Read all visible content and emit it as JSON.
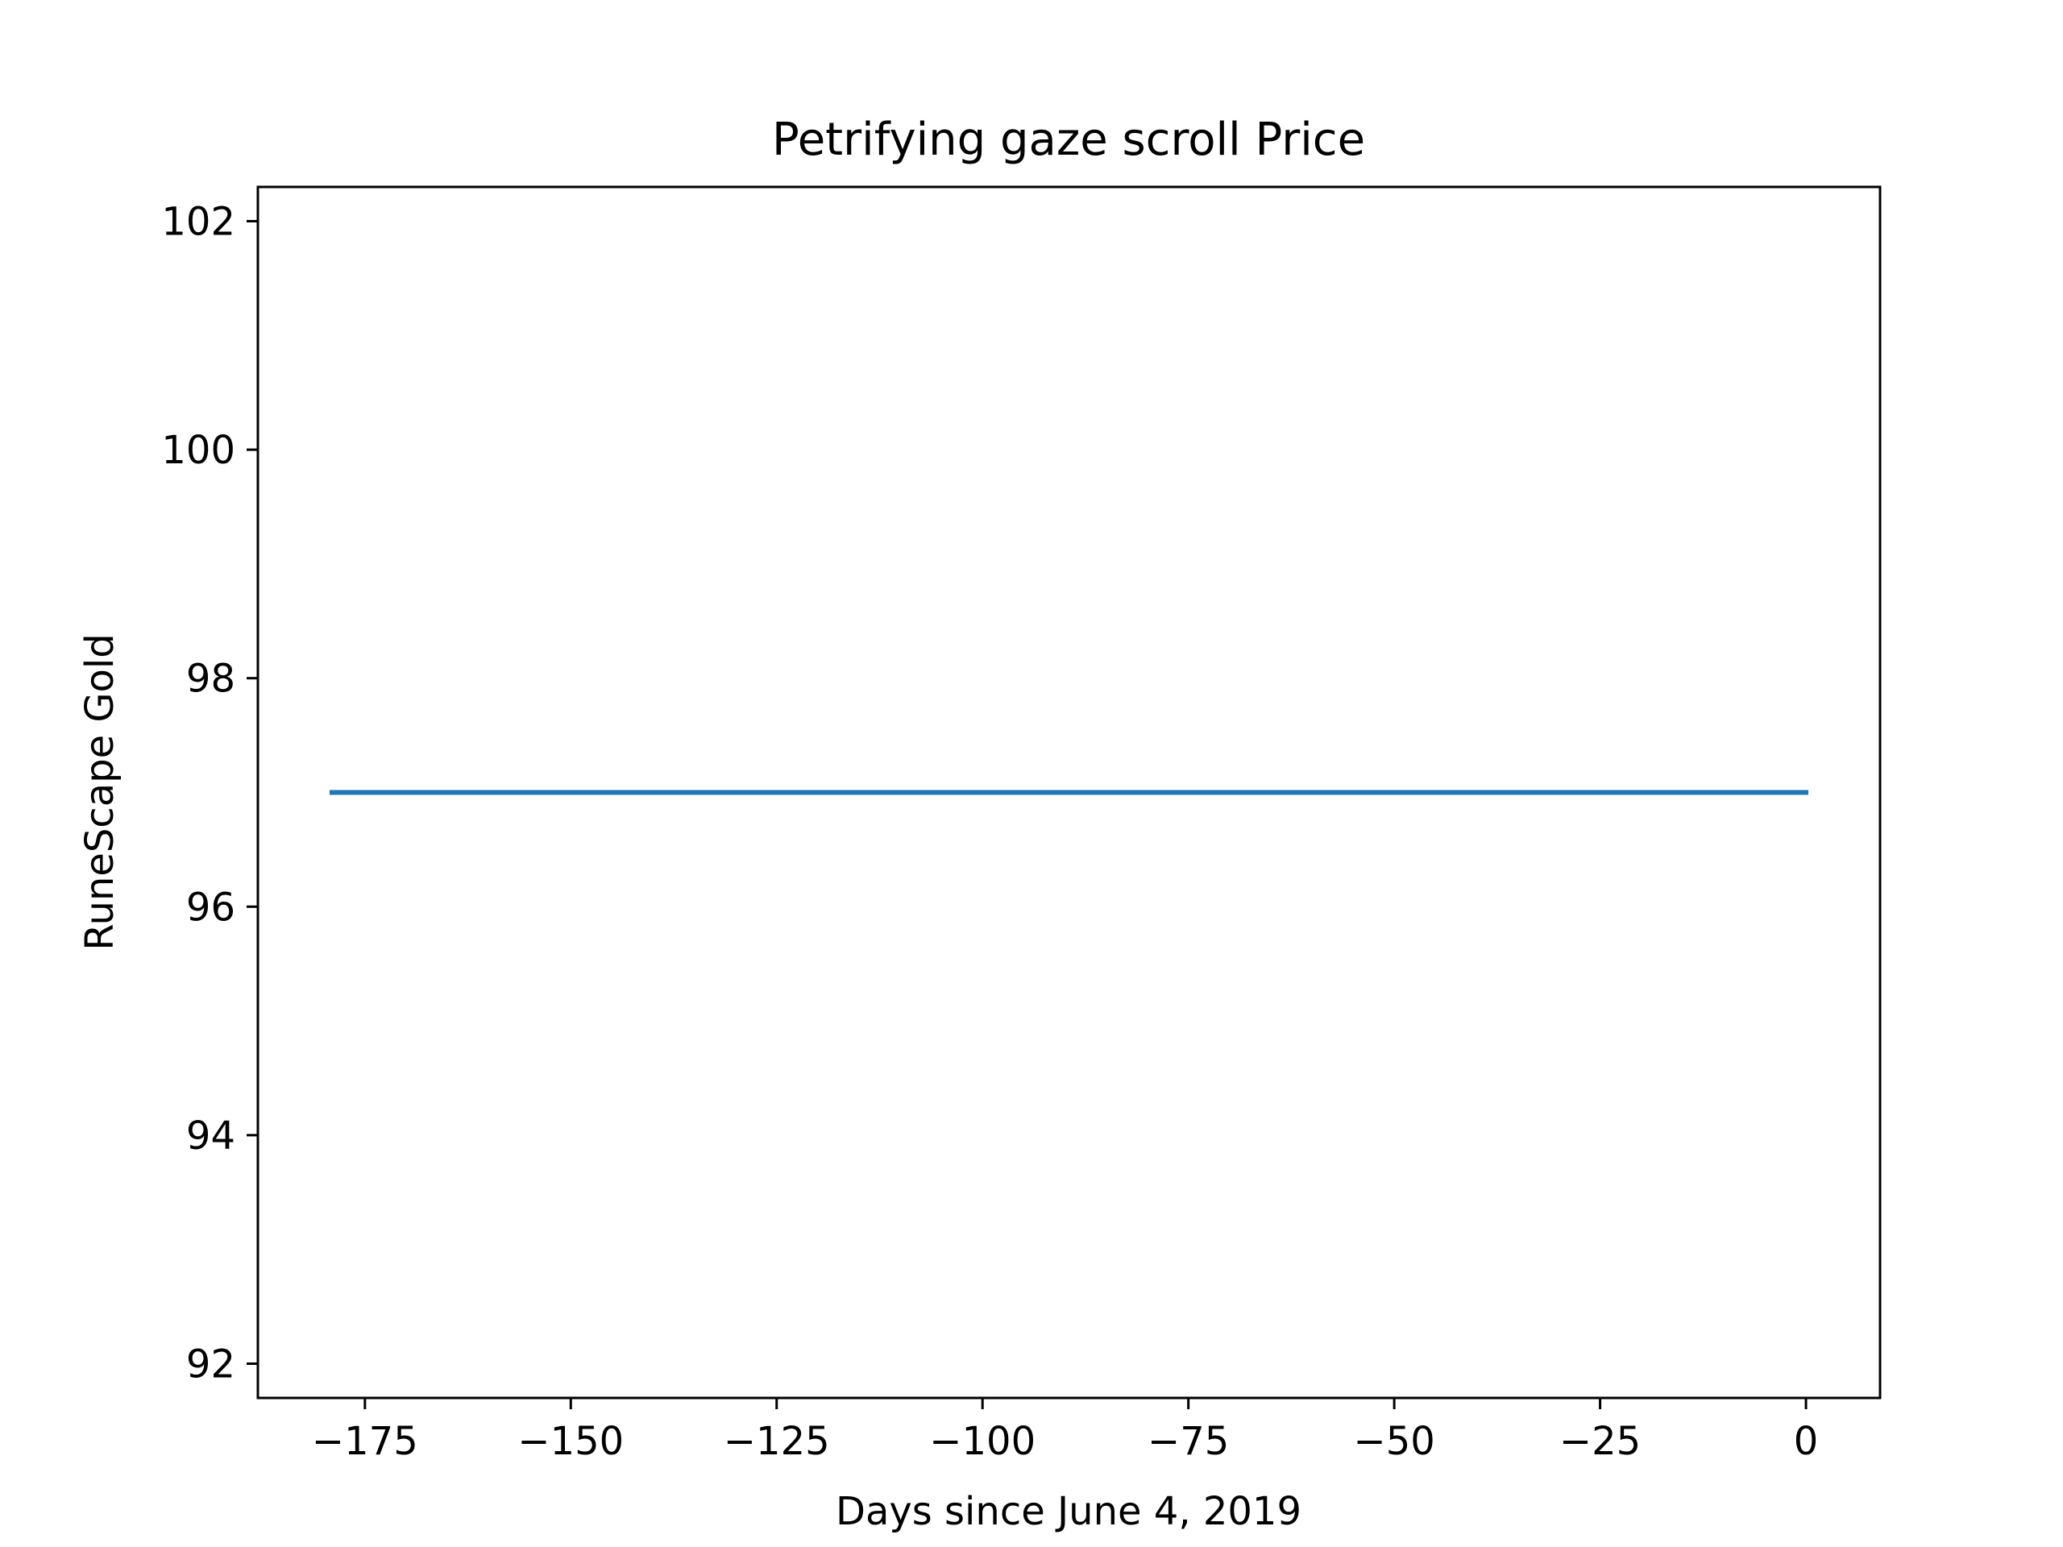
{
  "chart_data": {
    "type": "line",
    "title": "Petrifying gaze scroll Price",
    "xlabel": "Days since June 4, 2019",
    "ylabel": "RuneScape Gold",
    "xlim": [
      -188,
      9
    ],
    "ylim": [
      91.7,
      102.3
    ],
    "xticks": [
      -175,
      -150,
      -125,
      -100,
      -75,
      -50,
      -25,
      0
    ],
    "xtick_labels": [
      "−175",
      "−150",
      "−125",
      "−100",
      "−75",
      "−50",
      "−25",
      "0"
    ],
    "yticks": [
      92,
      94,
      96,
      98,
      100,
      102
    ],
    "ytick_labels": [
      "92",
      "94",
      "96",
      "98",
      "100",
      "102"
    ],
    "grid": false,
    "series": [
      {
        "name": "Petrifying gaze scroll",
        "color": "#1f77b4",
        "x": [
          -179,
          0
        ],
        "y": [
          97,
          97
        ]
      }
    ]
  }
}
